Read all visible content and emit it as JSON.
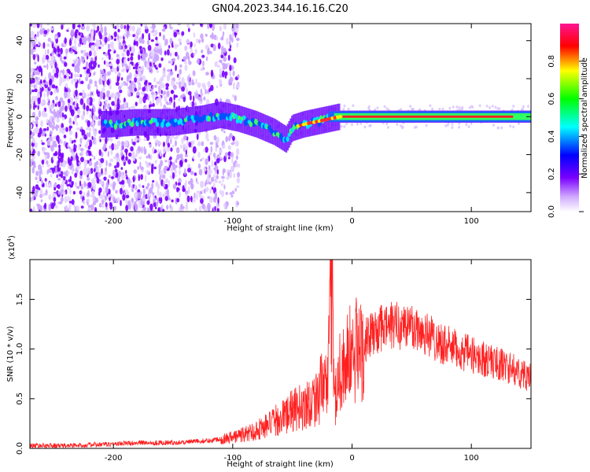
{
  "title": "GN04.2023.344.16.16.C20",
  "chart_data": [
    {
      "type": "heatmap",
      "xlabel": "Height of straight line (km)",
      "ylabel": "Frequency (Hz)",
      "xlim": [
        -270,
        150
      ],
      "ylim": [
        -50,
        49
      ],
      "x_ticks": [
        -200,
        -100,
        0,
        100
      ],
      "y_ticks": [
        -40,
        -20,
        0,
        20,
        40
      ],
      "colorbar": {
        "label": "Normalized spectral amplitude",
        "range": [
          0,
          1
        ],
        "ticks": [
          0.0,
          0.2,
          0.4,
          0.6,
          0.8
        ],
        "colors": [
          "#ffffff",
          "#7a00ff",
          "#0000ff",
          "#00ffff",
          "#00ff00",
          "#ffff00",
          "#ff0000",
          "#ff1493"
        ]
      },
      "ridge": [
        {
          "x": -205,
          "y": -4
        },
        {
          "x": -180,
          "y": -3
        },
        {
          "x": -150,
          "y": -3
        },
        {
          "x": -125,
          "y": -1
        },
        {
          "x": -110,
          "y": 1
        },
        {
          "x": -95,
          "y": -1
        },
        {
          "x": -80,
          "y": -4
        },
        {
          "x": -65,
          "y": -8
        },
        {
          "x": -55,
          "y": -12
        },
        {
          "x": -50,
          "y": -6
        },
        {
          "x": -40,
          "y": -4
        },
        {
          "x": -25,
          "y": -2
        },
        {
          "x": -10,
          "y": 0
        },
        {
          "x": 0,
          "y": 0
        },
        {
          "x": 50,
          "y": 0
        },
        {
          "x": 100,
          "y": 0
        },
        {
          "x": 150,
          "y": 0
        }
      ]
    },
    {
      "type": "line",
      "xlabel": "Height of straight line (km)",
      "ylabel": "SNR (10 * v/v)",
      "y_scale_note": "(x10⁴)",
      "y_scale_base": "(x10",
      "y_scale_exp": "4",
      "xlim": [
        -270,
        150
      ],
      "ylim": [
        0,
        1.9
      ],
      "x_ticks": [
        -200,
        -100,
        0,
        100
      ],
      "y_ticks": [
        0.0,
        0.5,
        1.0,
        1.5
      ],
      "y_tick_labels": [
        "0.0",
        "0.5",
        "1.0",
        "1.5"
      ],
      "color": "#ff2020",
      "series": [
        {
          "x": [
            -270,
            -240,
            -210,
            -180,
            -150,
            -120,
            -100,
            -85,
            -70,
            -60,
            -50,
            -40,
            -30,
            -25,
            -20,
            -17,
            -15,
            -10,
            0,
            10,
            20,
            30,
            40,
            50,
            60,
            70,
            80,
            90,
            100,
            110,
            120,
            130,
            140,
            150
          ],
          "values": [
            0.03,
            0.03,
            0.04,
            0.06,
            0.06,
            0.08,
            0.12,
            0.17,
            0.25,
            0.32,
            0.4,
            0.45,
            0.55,
            0.65,
            0.7,
            1.9,
            0.5,
            0.85,
            1.0,
            1.1,
            1.2,
            1.25,
            1.27,
            1.25,
            1.2,
            1.12,
            1.05,
            1.0,
            0.96,
            0.92,
            0.88,
            0.84,
            0.78,
            0.72
          ]
        }
      ]
    }
  ]
}
